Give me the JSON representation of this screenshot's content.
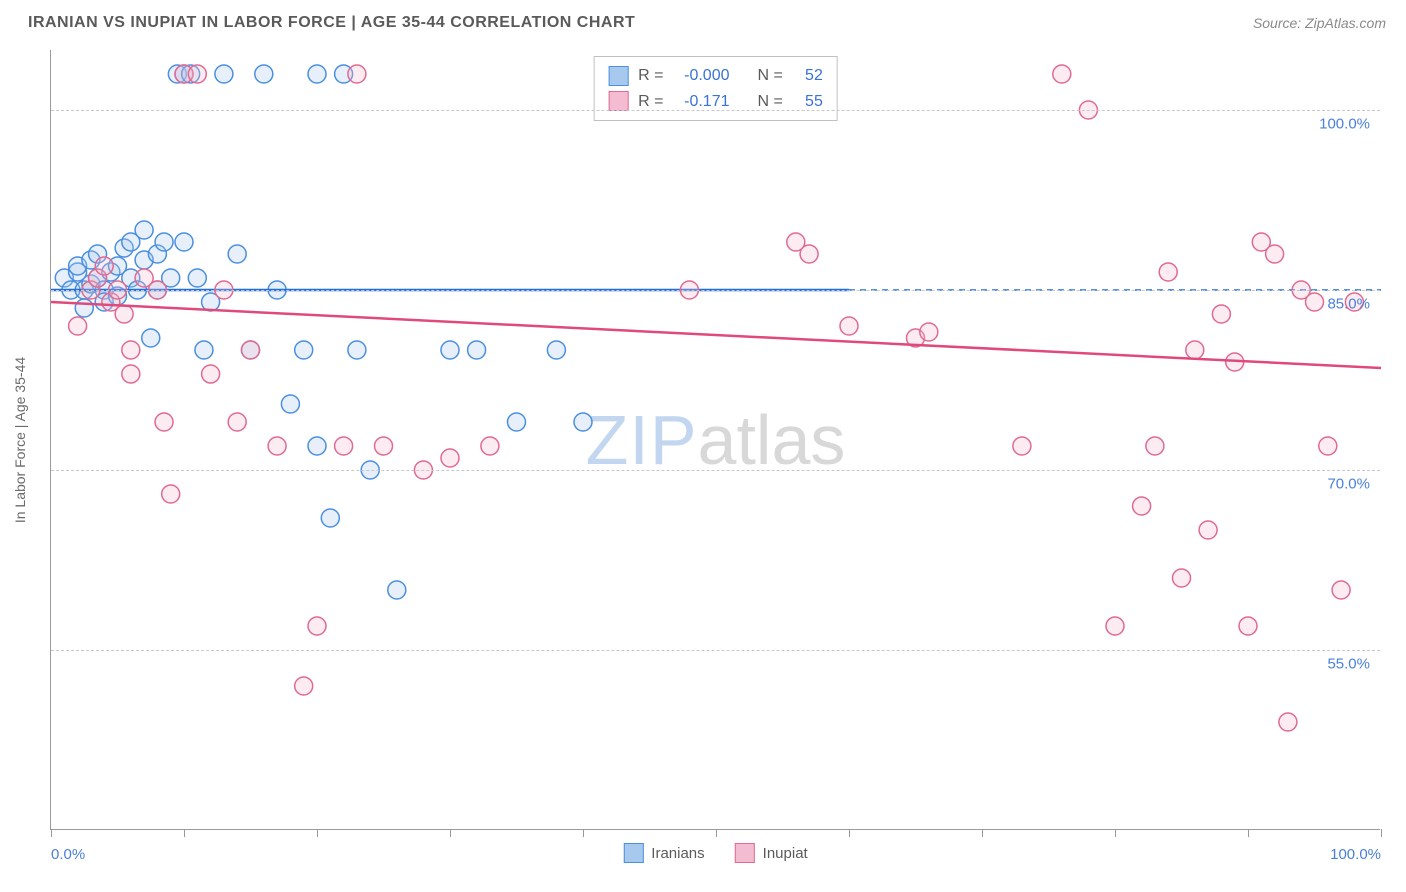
{
  "header": {
    "title": "IRANIAN VS INUPIAT IN LABOR FORCE | AGE 35-44 CORRELATION CHART",
    "source_label": "Source: ",
    "source_name": "ZipAtlas.com"
  },
  "chart": {
    "type": "scatter",
    "y_axis_title": "In Labor Force | Age 35-44",
    "xlim": [
      0,
      100
    ],
    "ylim": [
      40,
      105
    ],
    "y_ticks": [
      55.0,
      70.0,
      85.0,
      100.0
    ],
    "y_tick_labels": [
      "55.0%",
      "70.0%",
      "85.0%",
      "100.0%"
    ],
    "x_ticks": [
      0,
      10,
      20,
      30,
      40,
      50,
      60,
      70,
      80,
      90,
      100
    ],
    "x_tick_labels_shown": {
      "0": "0.0%",
      "100": "100.0%"
    },
    "background_color": "#ffffff",
    "grid_color": "#c8c8c8",
    "axis_color": "#9a9a9a",
    "tick_label_color": "#4a7fd8",
    "marker_radius": 9,
    "marker_stroke_width": 1.5,
    "marker_fill_opacity": 0.28,
    "trend_line_width": 2.5,
    "watermark": {
      "part1": "ZIP",
      "part2": "atlas"
    },
    "series": [
      {
        "name": "Iranians",
        "color_stroke": "#4a8fe0",
        "color_fill": "#a8c9ee",
        "trend_color": "#1f6fe0",
        "R": "-0.000",
        "N": "52",
        "trend": {
          "x0": 0,
          "y0": 85.0,
          "x1": 60,
          "y1": 85.0,
          "dash_x1": 100,
          "dash_y1": 85.0
        },
        "points": [
          [
            1,
            86
          ],
          [
            1.5,
            85
          ],
          [
            2,
            86.5
          ],
          [
            2,
            87
          ],
          [
            2.5,
            85
          ],
          [
            2.5,
            83.5
          ],
          [
            3,
            87.5
          ],
          [
            3,
            85.5
          ],
          [
            3.5,
            86
          ],
          [
            3.5,
            88
          ],
          [
            4,
            85
          ],
          [
            4,
            84
          ],
          [
            4.5,
            86.5
          ],
          [
            5,
            87
          ],
          [
            5,
            84.5
          ],
          [
            5.5,
            88.5
          ],
          [
            6,
            86
          ],
          [
            6,
            89
          ],
          [
            6.5,
            85
          ],
          [
            7,
            90
          ],
          [
            7,
            87.5
          ],
          [
            7.5,
            81
          ],
          [
            8,
            88
          ],
          [
            8,
            85
          ],
          [
            8.5,
            89
          ],
          [
            9,
            86
          ],
          [
            9.5,
            103
          ],
          [
            10,
            103
          ],
          [
            10.5,
            103
          ],
          [
            10,
            89
          ],
          [
            11,
            86
          ],
          [
            11.5,
            80
          ],
          [
            12,
            84
          ],
          [
            13,
            103
          ],
          [
            14,
            88
          ],
          [
            15,
            80
          ],
          [
            16,
            103
          ],
          [
            17,
            85
          ],
          [
            18,
            75.5
          ],
          [
            19,
            80
          ],
          [
            20,
            103
          ],
          [
            20,
            72
          ],
          [
            21,
            66
          ],
          [
            22,
            103
          ],
          [
            23,
            80
          ],
          [
            24,
            70
          ],
          [
            26,
            60
          ],
          [
            30,
            80
          ],
          [
            32,
            80
          ],
          [
            35,
            74
          ],
          [
            38,
            80
          ],
          [
            40,
            74
          ]
        ]
      },
      {
        "name": "Inupiat",
        "color_stroke": "#e06a90",
        "color_fill": "#f4bcd0",
        "trend_color": "#e04a7a",
        "R": "-0.171",
        "N": "55",
        "trend": {
          "x0": 0,
          "y0": 84.0,
          "x1": 100,
          "y1": 78.5
        },
        "points": [
          [
            2,
            82
          ],
          [
            3,
            85
          ],
          [
            3.5,
            86
          ],
          [
            4,
            87
          ],
          [
            4.5,
            84
          ],
          [
            5,
            85
          ],
          [
            5.5,
            83
          ],
          [
            6,
            80
          ],
          [
            6,
            78
          ],
          [
            7,
            86
          ],
          [
            8,
            85
          ],
          [
            8.5,
            74
          ],
          [
            9,
            68
          ],
          [
            10,
            103
          ],
          [
            11,
            103
          ],
          [
            12,
            78
          ],
          [
            13,
            85
          ],
          [
            14,
            74
          ],
          [
            15,
            80
          ],
          [
            17,
            72
          ],
          [
            19,
            52
          ],
          [
            20,
            57
          ],
          [
            22,
            72
          ],
          [
            23,
            103
          ],
          [
            25,
            72
          ],
          [
            28,
            70
          ],
          [
            30,
            71
          ],
          [
            33,
            72
          ],
          [
            48,
            85
          ],
          [
            56,
            89
          ],
          [
            57,
            88
          ],
          [
            60,
            82
          ],
          [
            65,
            81
          ],
          [
            66,
            81.5
          ],
          [
            73,
            72
          ],
          [
            76,
            103
          ],
          [
            78,
            100
          ],
          [
            80,
            57
          ],
          [
            82,
            67
          ],
          [
            83,
            72
          ],
          [
            84,
            86.5
          ],
          [
            85,
            61
          ],
          [
            86,
            80
          ],
          [
            87,
            65
          ],
          [
            88,
            83
          ],
          [
            89,
            79
          ],
          [
            90,
            57
          ],
          [
            91,
            89
          ],
          [
            92,
            88
          ],
          [
            93,
            49
          ],
          [
            94,
            85
          ],
          [
            95,
            84
          ],
          [
            96,
            72
          ],
          [
            97,
            60
          ],
          [
            98,
            84
          ]
        ]
      }
    ],
    "stats_box": {
      "R_label": "R =",
      "N_label": "N ="
    }
  }
}
